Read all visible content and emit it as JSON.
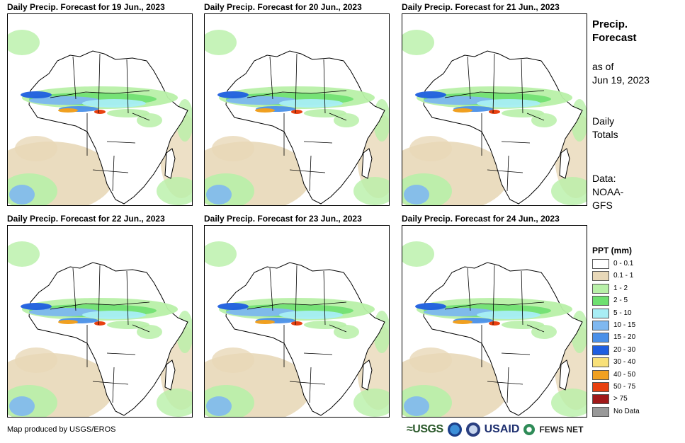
{
  "panels": [
    {
      "title": "Daily Precip. Forecast for 19 Jun., 2023"
    },
    {
      "title": "Daily Precip. Forecast for 20 Jun., 2023"
    },
    {
      "title": "Daily Precip. Forecast for 21 Jun., 2023"
    },
    {
      "title": "Daily Precip. Forecast for 22 Jun., 2023"
    },
    {
      "title": "Daily Precip. Forecast for 23 Jun., 2023"
    },
    {
      "title": "Daily Precip. Forecast for 24 Jun., 2023"
    }
  ],
  "side": {
    "title_line1": "Precip.",
    "title_line2": "Forecast",
    "asof_line1": "as of",
    "asof_line2": "Jun 19, 2023",
    "totals_line1": "Daily",
    "totals_line2": "Totals",
    "data_line1": "Data:",
    "data_line2": "NOAA-",
    "data_line3": "GFS"
  },
  "legend": {
    "title": "PPT (mm)",
    "items": [
      {
        "label": "0 - 0.1",
        "color": "#ffffff"
      },
      {
        "label": "0.1 - 1",
        "color": "#e8d8b8"
      },
      {
        "label": "1 - 2",
        "color": "#b8f0a8"
      },
      {
        "label": "2 - 5",
        "color": "#6ee070"
      },
      {
        "label": "5 - 10",
        "color": "#a8eef5"
      },
      {
        "label": "10 - 15",
        "color": "#7fb8f0"
      },
      {
        "label": "15 - 20",
        "color": "#4a90e8"
      },
      {
        "label": "20 - 30",
        "color": "#1f5ee0"
      },
      {
        "label": "30 - 40",
        "color": "#f8e078"
      },
      {
        "label": "40 - 50",
        "color": "#f0a020"
      },
      {
        "label": "50 - 75",
        "color": "#e84010"
      },
      {
        "label": "> 75",
        "color": "#a01818"
      },
      {
        "label": "No Data",
        "color": "#999999"
      }
    ]
  },
  "footer": {
    "credit": "Map produced by USGS/EROS",
    "logo_usgs": "≈USGS",
    "logo_usaid": "USAID",
    "logo_fews": "FEWS NET"
  }
}
